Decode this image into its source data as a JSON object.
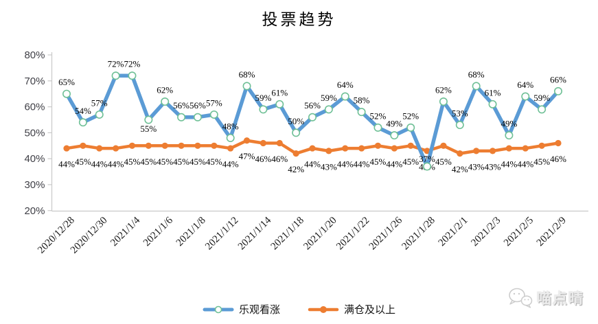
{
  "colors": {
    "blue": "#5B9BD5",
    "orange": "#ED7D31",
    "marker_ring": "#6FC096",
    "axis": "#C9C9C9",
    "tick_text": "#3F3F46",
    "label_text": "#1A1A1A"
  },
  "watermark": {
    "text": "喵点晴",
    "icon": "wechat-icon"
  },
  "chart_data": {
    "type": "line",
    "title": "投票趋势",
    "xlabel": "",
    "ylabel": "",
    "ylim": [
      20,
      80
    ],
    "y_ticks": [
      "80%",
      "70%",
      "60%",
      "50%",
      "40%",
      "30%",
      "20%"
    ],
    "grid": false,
    "data_labels": true,
    "legend_position": "bottom",
    "n_points": 31,
    "label_every": 2,
    "x_tick_labels": [
      "2020/12/28",
      "2020/12/30",
      "2021/1/4",
      "2021/1/6",
      "2021/1/8",
      "2021/1/12",
      "2021/1/14",
      "2021/1/18",
      "2021/1/20",
      "2021/1/22",
      "2021/1/26",
      "2021/1/28",
      "2021/2/1",
      "2021/2/3",
      "2021/2/5",
      "2021/2/9"
    ],
    "series": [
      {
        "name": "乐观看涨",
        "color": "#5B9BD5",
        "marker": "open-circle",
        "values": [
          65,
          54,
          57,
          72,
          72,
          55,
          62,
          56,
          56,
          57,
          48,
          68,
          59,
          61,
          50,
          56,
          59,
          64,
          58,
          52,
          49,
          52,
          37,
          62,
          53,
          68,
          61,
          49,
          64,
          59,
          66
        ]
      },
      {
        "name": "满仓及以上",
        "color": "#ED7D31",
        "marker": "filled-circle",
        "values": [
          44,
          45,
          44,
          44,
          45,
          45,
          45,
          45,
          45,
          45,
          44,
          47,
          46,
          46,
          42,
          44,
          43,
          44,
          44,
          45,
          44,
          45,
          43,
          45,
          42,
          43,
          43,
          44,
          44,
          45,
          46
        ]
      }
    ]
  }
}
